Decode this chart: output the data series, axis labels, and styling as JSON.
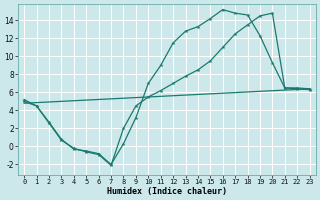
{
  "xlabel": "Humidex (Indice chaleur)",
  "background_color": "#cce8ea",
  "grid_color": "#b0d8dc",
  "line_color": "#1a7a70",
  "xlim": [
    -0.5,
    23.5
  ],
  "ylim": [
    -3.2,
    15.8
  ],
  "xticks": [
    0,
    1,
    2,
    3,
    4,
    5,
    6,
    7,
    8,
    9,
    10,
    11,
    12,
    13,
    14,
    15,
    16,
    17,
    18,
    19,
    20,
    21,
    22,
    23
  ],
  "yticks": [
    -2,
    0,
    2,
    4,
    6,
    8,
    10,
    12,
    14
  ],
  "line1_x": [
    0,
    1,
    2,
    3,
    4,
    5,
    6,
    7,
    8,
    9,
    10,
    11,
    12,
    13,
    14,
    15,
    16,
    17,
    18,
    19,
    20,
    21,
    22,
    23
  ],
  "line1_y": [
    5.2,
    4.5,
    2.7,
    0.8,
    -0.3,
    -0.5,
    -0.8,
    -2.0,
    0.3,
    3.2,
    7.0,
    9.0,
    11.5,
    12.8,
    13.3,
    14.2,
    15.2,
    14.8,
    14.6,
    12.3,
    9.3,
    6.5,
    6.5,
    6.4
  ],
  "line2_x": [
    0,
    1,
    2,
    3,
    4,
    5,
    6,
    7,
    8,
    9,
    10,
    11,
    12,
    13,
    14,
    15,
    16,
    17,
    18,
    19,
    20,
    21,
    22,
    23
  ],
  "line2_y": [
    5.0,
    4.5,
    2.6,
    0.7,
    -0.2,
    -0.6,
    -0.9,
    -2.1,
    2.0,
    4.5,
    5.5,
    6.2,
    7.0,
    7.8,
    8.5,
    9.5,
    11.0,
    12.5,
    13.5,
    14.5,
    14.8,
    6.5,
    6.4,
    6.3
  ],
  "line3_x": [
    0,
    23
  ],
  "line3_y": [
    4.8,
    6.4
  ]
}
